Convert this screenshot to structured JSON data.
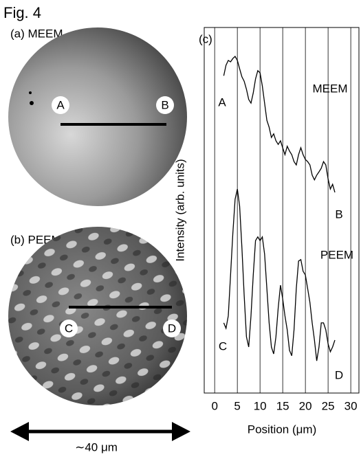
{
  "figure": {
    "title": "Fig. 4",
    "panel_a": "(a) MEEM",
    "panel_b": "(b) PEEM",
    "point_a": "A",
    "point_b": "B",
    "point_c": "C",
    "point_d": "D",
    "scale_label": "∼40 μm"
  },
  "chart_data": {
    "type": "line",
    "panel_label": "(c)",
    "xlabel": "Position (μm)",
    "ylabel": "Intensity (arb. units)",
    "annotations": [
      "A",
      "MEEM",
      "B",
      "PEEM",
      "C",
      "D"
    ],
    "x": [
      2,
      2.5,
      3,
      3.5,
      4,
      4.5,
      5,
      5.5,
      6,
      6.5,
      7,
      7.5,
      8,
      8.5,
      9,
      9.5,
      10,
      10.5,
      11,
      11.5,
      12,
      12.5,
      13,
      13.5,
      14,
      14.5,
      15,
      15.5,
      16,
      16.5,
      17,
      17.5,
      18,
      18.5,
      19,
      19.5,
      20,
      20.5,
      21,
      21.5,
      22,
      22.5,
      23,
      23.5,
      24,
      24.5,
      25,
      25.5,
      26,
      26.5
    ],
    "series": [
      {
        "color": "#000000",
        "values": [
          86.8,
          89.7,
          91,
          90.6,
          91.5,
          92.1,
          91,
          88.7,
          86.5,
          85.3,
          83.1,
          80.3,
          79.3,
          82.1,
          85.9,
          88.2,
          87.6,
          84,
          79.3,
          74.6,
          72.7,
          69.9,
          70.9,
          69,
          68,
          69,
          67.1,
          65.2,
          67.5,
          66.2,
          65.2,
          63.3,
          62.4,
          65.2,
          67.1,
          65.2,
          63.9,
          63.3,
          62.4,
          59.6,
          58.3,
          59.6,
          60.5,
          61.5,
          63.3,
          62.4,
          58.6,
          55.8,
          57.1,
          54.9
        ]
      },
      {
        "color": "#000000",
        "values": [
          19.2,
          17.7,
          21.1,
          32.3,
          43.6,
          53,
          55.8,
          51.1,
          39.8,
          26.7,
          15.4,
          12.6,
          21.1,
          32.3,
          41.7,
          42.7,
          41.7,
          42.7,
          38,
          28.6,
          19.2,
          12.6,
          10.7,
          15.4,
          23.3,
          29.5,
          25.8,
          21.1,
          17.3,
          11.7,
          10.2,
          17.3,
          28.6,
          36.1,
          36.5,
          33.3,
          32.3,
          28.6,
          24.8,
          19.2,
          14.5,
          8.8,
          12.6,
          19.2,
          19.2,
          17.3,
          13.5,
          11.3,
          12.6,
          14.5
        ]
      }
    ],
    "xlim": [
      -2.3,
      31.8
    ],
    "xticks": [
      0,
      5,
      10,
      15,
      20,
      25,
      30
    ],
    "ylim": [
      0,
      100
    ],
    "grid": true
  }
}
